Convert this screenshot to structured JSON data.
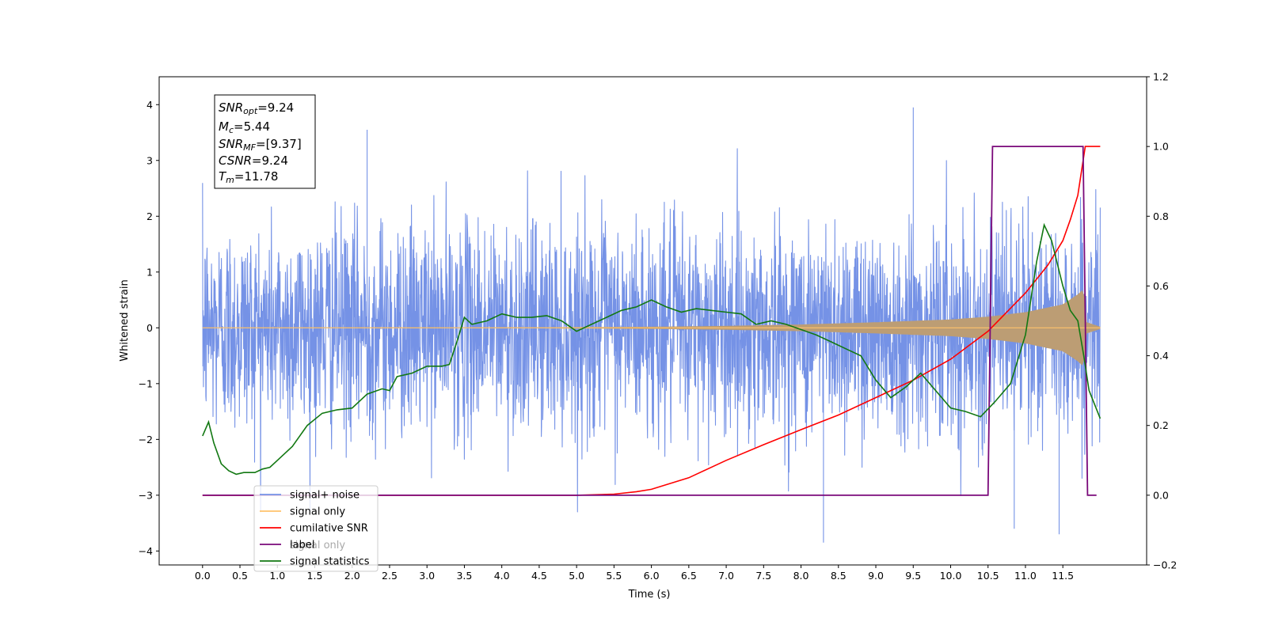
{
  "chart_data": {
    "type": "line",
    "xlabel": "Time (s)",
    "ylabel": "Whitened strain",
    "xlim": [
      -0.58,
      12.62
    ],
    "ylim": [
      -4.25,
      4.5
    ],
    "y2lim": [
      -0.2,
      1.2
    ],
    "x_ticks": [
      "0.0",
      "0.5",
      "1.0",
      "1.5",
      "2.0",
      "2.5",
      "3.0",
      "3.5",
      "4.0",
      "4.5",
      "5.0",
      "5.5",
      "6.0",
      "6.5",
      "7.0",
      "7.5",
      "8.0",
      "8.5",
      "9.0",
      "9.5",
      "10.0",
      "10.5",
      "11.0",
      "11.5"
    ],
    "y_ticks": [
      "4",
      "3",
      "2",
      "1",
      "0",
      "−1",
      "−2",
      "−3",
      "−4"
    ],
    "y2_ticks": [
      "1.2",
      "1.0",
      "0.8",
      "0.6",
      "0.4",
      "0.2",
      "0.0",
      "−0.2"
    ],
    "colors": {
      "signal_noise": "#7592e6",
      "signal_only": "#ffc36b",
      "signal_envelope": "#bc9d74",
      "cumulative_snr": "#ff0000",
      "label": "#7a097a",
      "statistics": "#127812"
    },
    "legend": {
      "placement": "lower-left",
      "entries": [
        "signal+ noise",
        "signal only",
        "cumilative SNR",
        "label",
        "signal statistics"
      ],
      "occluded_text": "signal only"
    },
    "info_box": {
      "lines": [
        {
          "sym": "SNR",
          "sub": "opt",
          "value": "=9.24"
        },
        {
          "sym": "M",
          "sub": "c",
          "value": "=5.44"
        },
        {
          "sym": "SNR",
          "sub": "MF",
          "value": "=[9.37]"
        },
        {
          "sym": "CSNR",
          "sub": "",
          "value": "=9.24"
        },
        {
          "sym": "T",
          "sub": "m",
          "value": "=11.78"
        }
      ]
    },
    "series": [
      {
        "name": "signal+ noise",
        "axis": "left",
        "style": "noise",
        "x_range": [
          0.0,
          12.0
        ],
        "typical_amplitude": 1.2,
        "peaks": [
          [
            9.5,
            3.95
          ],
          [
            2.2,
            3.55
          ],
          [
            10.85,
            -3.6
          ],
          [
            8.3,
            -3.85
          ],
          [
            11.45,
            -3.7
          ]
        ]
      },
      {
        "name": "signal only",
        "axis": "left",
        "style": "chirp",
        "x_range": [
          0.0,
          12.0
        ],
        "merger_time": 11.78,
        "envelope_points": [
          [
            0,
            0.005
          ],
          [
            4.5,
            0.01
          ],
          [
            6.0,
            0.02
          ],
          [
            7.0,
            0.035
          ],
          [
            8.0,
            0.06
          ],
          [
            9.0,
            0.1
          ],
          [
            10.0,
            0.15
          ],
          [
            10.5,
            0.2
          ],
          [
            11.0,
            0.28
          ],
          [
            11.5,
            0.42
          ],
          [
            11.7,
            0.6
          ],
          [
            11.78,
            0.7
          ],
          [
            11.82,
            0.1
          ],
          [
            12.0,
            0.02
          ]
        ]
      },
      {
        "name": "cumilative SNR",
        "axis": "right",
        "x": [
          0,
          5.0,
          5.5,
          5.8,
          6.0,
          6.5,
          7.0,
          7.5,
          8.0,
          8.5,
          9.0,
          9.5,
          10.0,
          10.5,
          11.0,
          11.3,
          11.5,
          11.6,
          11.7,
          11.8,
          12.0
        ],
        "values": [
          0,
          0,
          0.003,
          0.01,
          0.017,
          0.05,
          0.1,
          0.145,
          0.188,
          0.23,
          0.28,
          0.33,
          0.39,
          0.47,
          0.58,
          0.66,
          0.73,
          0.79,
          0.86,
          1.0,
          1.0
        ]
      },
      {
        "name": "label",
        "axis": "right",
        "x": [
          0,
          10.5,
          10.56,
          11.77,
          11.83,
          11.95
        ],
        "values": [
          0,
          0,
          1,
          1,
          0,
          0
        ]
      },
      {
        "name": "signal statistics",
        "axis": "right",
        "x": [
          0,
          0.08,
          0.15,
          0.25,
          0.35,
          0.45,
          0.55,
          0.7,
          0.8,
          0.9,
          1.0,
          1.2,
          1.4,
          1.6,
          1.8,
          2.0,
          2.2,
          2.4,
          2.5,
          2.6,
          2.8,
          3.0,
          3.2,
          3.3,
          3.4,
          3.5,
          3.6,
          3.8,
          4.0,
          4.2,
          4.4,
          4.6,
          4.8,
          5.0,
          5.2,
          5.4,
          5.6,
          5.8,
          6.0,
          6.2,
          6.4,
          6.6,
          6.8,
          7.0,
          7.2,
          7.4,
          7.6,
          7.8,
          8.0,
          8.2,
          8.4,
          8.6,
          8.8,
          9.0,
          9.2,
          9.4,
          9.6,
          9.8,
          10.0,
          10.2,
          10.4,
          10.6,
          10.8,
          11.0,
          11.15,
          11.25,
          11.35,
          11.5,
          11.6,
          11.7,
          11.78,
          11.85,
          12.0
        ],
        "values": [
          0.17,
          0.21,
          0.15,
          0.09,
          0.07,
          0.06,
          0.065,
          0.065,
          0.075,
          0.08,
          0.1,
          0.14,
          0.2,
          0.235,
          0.245,
          0.25,
          0.29,
          0.305,
          0.3,
          0.34,
          0.35,
          0.37,
          0.37,
          0.375,
          0.44,
          0.51,
          0.49,
          0.5,
          0.52,
          0.51,
          0.51,
          0.515,
          0.5,
          0.47,
          0.49,
          0.51,
          0.53,
          0.54,
          0.56,
          0.54,
          0.525,
          0.535,
          0.53,
          0.525,
          0.52,
          0.49,
          0.5,
          0.49,
          0.475,
          0.46,
          0.44,
          0.42,
          0.4,
          0.33,
          0.28,
          0.31,
          0.35,
          0.3,
          0.25,
          0.24,
          0.225,
          0.27,
          0.32,
          0.46,
          0.67,
          0.775,
          0.73,
          0.6,
          0.53,
          0.5,
          0.4,
          0.3,
          0.22
        ]
      }
    ]
  }
}
